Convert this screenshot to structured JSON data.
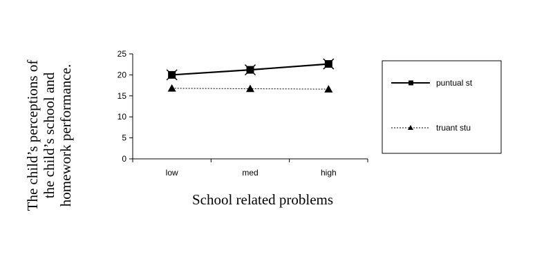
{
  "chart_data": {
    "type": "line",
    "categories": [
      "low",
      "med",
      "high"
    ],
    "series": [
      {
        "name": "puntual st",
        "values": [
          20.0,
          21.2,
          22.6
        ],
        "marker": "square",
        "line_style": "solid",
        "color": "#000000"
      },
      {
        "name": "truant stu",
        "values": [
          16.8,
          16.7,
          16.6
        ],
        "marker": "triangle",
        "line_style": "dotted",
        "color": "#000000"
      }
    ],
    "xlabel": "School related problems",
    "ylabel_lines": [
      "The child’s perceptions of",
      "the child’s school and",
      "homework performance."
    ],
    "ylim": [
      0,
      25
    ],
    "yticks": [
      0,
      5,
      10,
      15,
      20,
      25
    ],
    "grid": false,
    "legend_position": "right"
  }
}
